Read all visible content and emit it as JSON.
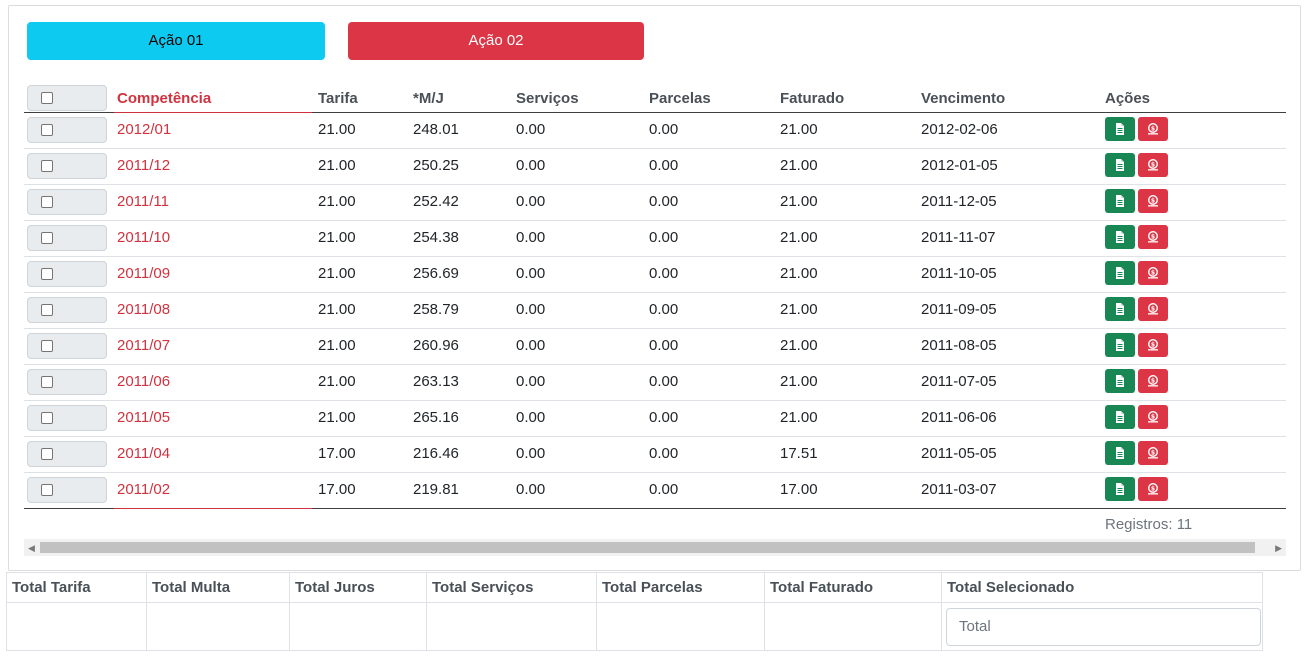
{
  "actions": {
    "action1_label": "Ação 01",
    "action2_label": "Ação 02"
  },
  "table": {
    "headers": {
      "competencia": "Competência",
      "tarifa": "Tarifa",
      "mj": "*M/J",
      "servicos": "Serviços",
      "parcelas": "Parcelas",
      "faturado": "Faturado",
      "vencimento": "Vencimento",
      "acoes": "Ações"
    },
    "rows": [
      {
        "competencia": "2012/01",
        "tarifa": "21.00",
        "mj": "248.01",
        "servicos": "0.00",
        "parcelas": "0.00",
        "faturado": "21.00",
        "vencimento": "2012-02-06"
      },
      {
        "competencia": "2011/12",
        "tarifa": "21.00",
        "mj": "250.25",
        "servicos": "0.00",
        "parcelas": "0.00",
        "faturado": "21.00",
        "vencimento": "2012-01-05"
      },
      {
        "competencia": "2011/11",
        "tarifa": "21.00",
        "mj": "252.42",
        "servicos": "0.00",
        "parcelas": "0.00",
        "faturado": "21.00",
        "vencimento": "2011-12-05"
      },
      {
        "competencia": "2011/10",
        "tarifa": "21.00",
        "mj": "254.38",
        "servicos": "0.00",
        "parcelas": "0.00",
        "faturado": "21.00",
        "vencimento": "2011-11-07"
      },
      {
        "competencia": "2011/09",
        "tarifa": "21.00",
        "mj": "256.69",
        "servicos": "0.00",
        "parcelas": "0.00",
        "faturado": "21.00",
        "vencimento": "2011-10-05"
      },
      {
        "competencia": "2011/08",
        "tarifa": "21.00",
        "mj": "258.79",
        "servicos": "0.00",
        "parcelas": "0.00",
        "faturado": "21.00",
        "vencimento": "2011-09-05"
      },
      {
        "competencia": "2011/07",
        "tarifa": "21.00",
        "mj": "260.96",
        "servicos": "0.00",
        "parcelas": "0.00",
        "faturado": "21.00",
        "vencimento": "2011-08-05"
      },
      {
        "competencia": "2011/06",
        "tarifa": "21.00",
        "mj": "263.13",
        "servicos": "0.00",
        "parcelas": "0.00",
        "faturado": "21.00",
        "vencimento": "2011-07-05"
      },
      {
        "competencia": "2011/05",
        "tarifa": "21.00",
        "mj": "265.16",
        "servicos": "0.00",
        "parcelas": "0.00",
        "faturado": "21.00",
        "vencimento": "2011-06-06"
      },
      {
        "competencia": "2011/04",
        "tarifa": "17.00",
        "mj": "216.46",
        "servicos": "0.00",
        "parcelas": "0.00",
        "faturado": "17.51",
        "vencimento": "2011-05-05"
      },
      {
        "competencia": "2011/02",
        "tarifa": "17.00",
        "mj": "219.81",
        "servicos": "0.00",
        "parcelas": "0.00",
        "faturado": "17.00",
        "vencimento": "2011-03-07"
      }
    ],
    "records_label": "Registros: 11"
  },
  "totals": {
    "headers": [
      "Total Tarifa",
      "Total Multa",
      "Total Juros",
      "Total Serviços",
      "Total Parcelas",
      "Total Faturado",
      "Total Selecionado"
    ],
    "input_placeholder": "Total",
    "input_value": ""
  },
  "icons": {
    "doc": "file-text-icon",
    "bill": "money-icon"
  },
  "colors": {
    "info": "#0dcaf0",
    "danger": "#dc3545",
    "success": "#198754",
    "accent_red": "#d0333f"
  }
}
